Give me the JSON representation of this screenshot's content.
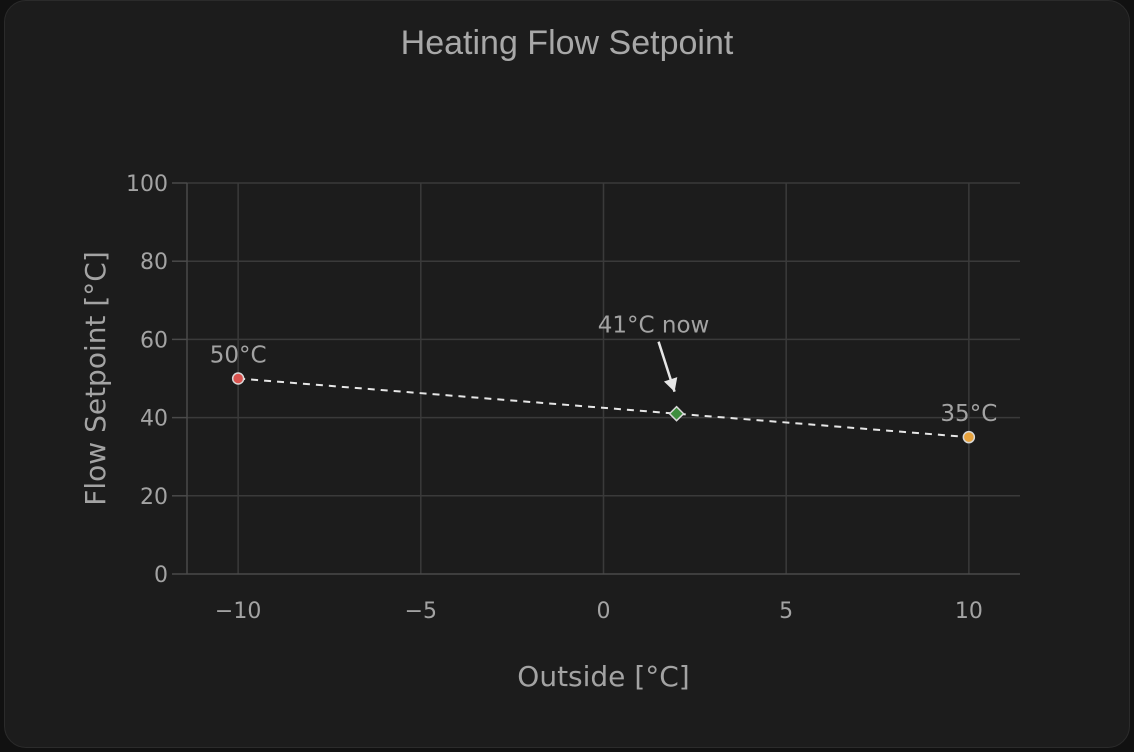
{
  "chart_data": {
    "type": "line",
    "title": "Heating Flow Setpoint",
    "xlabel": "Outside [°C]",
    "ylabel": "Flow Setpoint [°C]",
    "xlim": [
      -11.4,
      11.4
    ],
    "ylim": [
      0,
      100
    ],
    "x_ticks": [
      -10,
      -5,
      0,
      5,
      10
    ],
    "x_tick_labels": [
      "−10",
      "−5",
      "0",
      "5",
      "10"
    ],
    "y_ticks": [
      0,
      20,
      40,
      60,
      80,
      100
    ],
    "y_tick_labels": [
      "0",
      "20",
      "40",
      "60",
      "80",
      "100"
    ],
    "grid": true,
    "curve": {
      "style": "dashed",
      "color": "#e6e6e6",
      "points": [
        {
          "x": -10,
          "y": 50,
          "label": "50°C",
          "color": "#d9534f"
        },
        {
          "x": 10,
          "y": 35,
          "label": "35°C",
          "color": "#e8a33d"
        }
      ]
    },
    "current": {
      "x": 2,
      "y": 41,
      "label": "41°C now",
      "color": "#3e8e3e",
      "marker": "diamond"
    }
  }
}
